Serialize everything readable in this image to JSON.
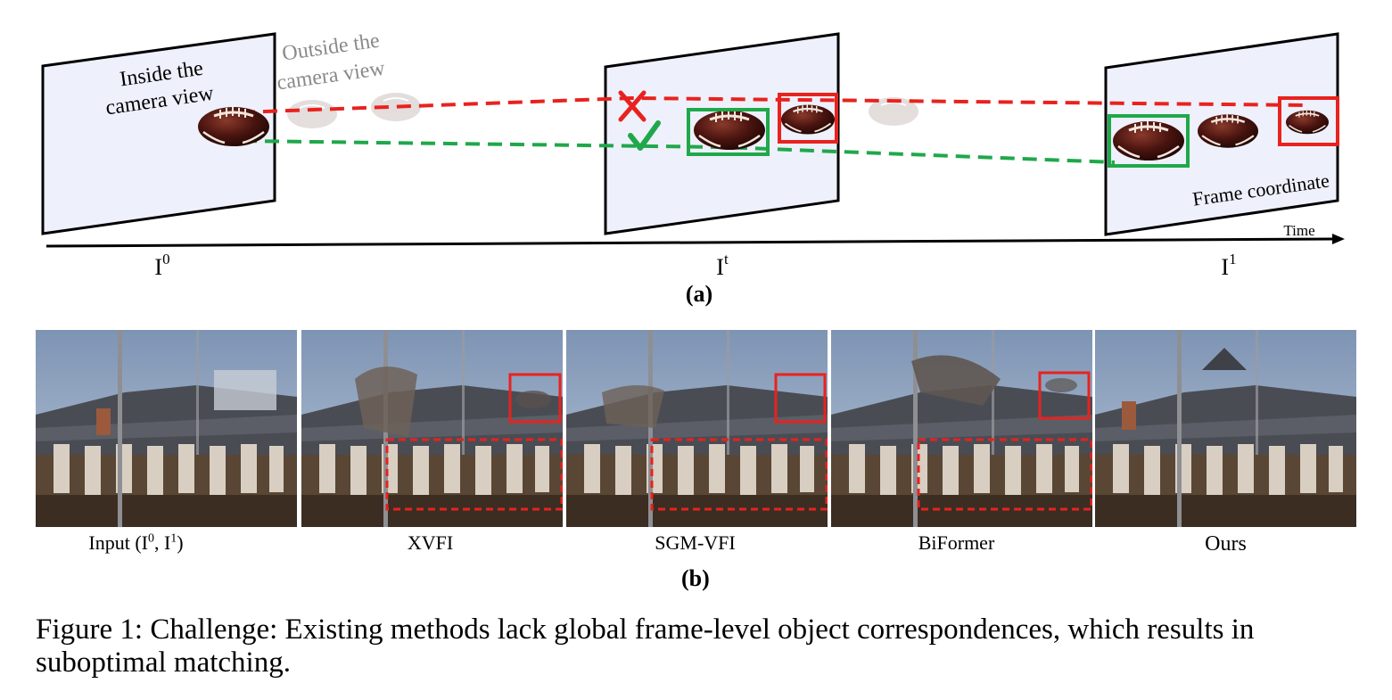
{
  "panel_a": {
    "inside_label_line1": "Inside the",
    "inside_label_line2": "camera view",
    "outside_label_line1": "Outside the",
    "outside_label_line2": "camera view",
    "frame_coordinate_label": "Frame coordinate",
    "time_label": "Time",
    "frame_labels": [
      {
        "base": "I",
        "sup": "0"
      },
      {
        "base": "I",
        "sup": "t"
      },
      {
        "base": "I",
        "sup": "1"
      }
    ],
    "caption": "(a)",
    "colors": {
      "wrong": "#e8221e",
      "correct": "#1fa84a",
      "frame_fill": "#eef0fb"
    }
  },
  "panel_b": {
    "caption": "(b)",
    "methods": [
      {
        "label_base": "Input (I",
        "sup0": "0",
        "mid": ", I",
        "sup1": "1",
        "end": ")"
      },
      {
        "label": "XVFI"
      },
      {
        "label": "SGM-VFI"
      },
      {
        "label": "BiFormer"
      },
      {
        "label": "Ours"
      }
    ]
  },
  "caption": {
    "text": "Figure 1: Challenge: Existing methods lack global frame-level object correspondences, which results in suboptimal matching."
  }
}
